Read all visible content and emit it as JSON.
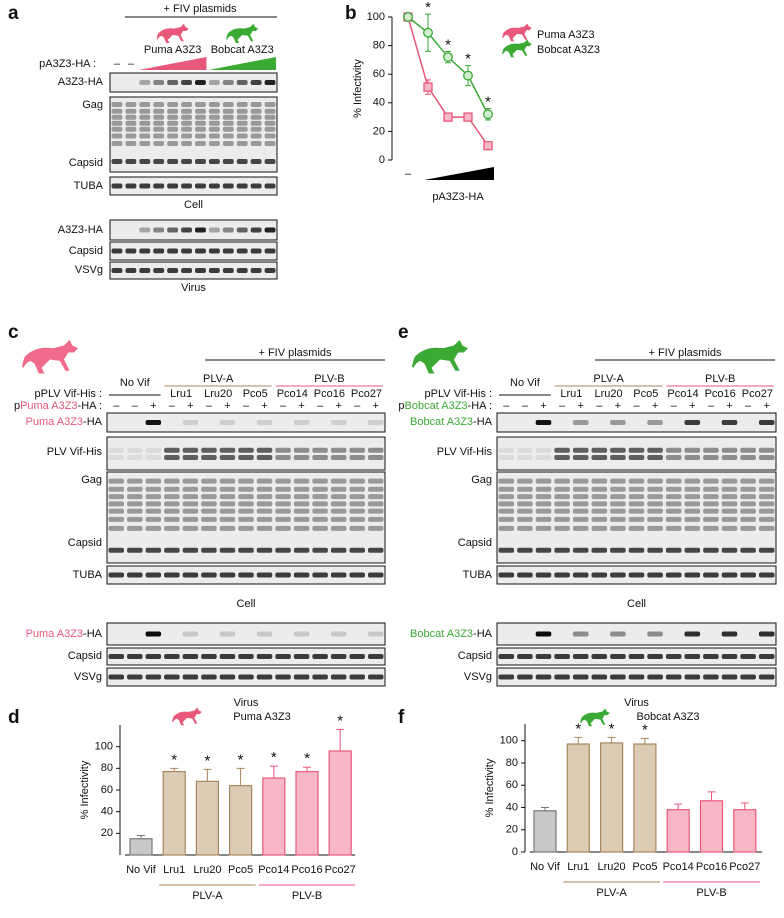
{
  "figure": {
    "a": {
      "label": "a",
      "header": "+ FIV plasmids",
      "species": [
        {
          "name": "Puma A3Z3",
          "color": "#e8587a"
        },
        {
          "name": "Bobcat A3Z3",
          "color": "#3aaa35"
        }
      ],
      "plasmid_label": "pA3Z3-HA :",
      "controls": [
        "–",
        "–"
      ],
      "cell_rows": [
        "A3Z3-HA",
        "Gag",
        "Capsid",
        "TUBA"
      ],
      "cell_caption": "Cell",
      "virus_rows": [
        "A3Z3-HA",
        "Capsid",
        "VSVg"
      ],
      "virus_caption": "Virus"
    },
    "c": {
      "label": "c",
      "header": "+ FIV plasmids",
      "icon_color": "#f06b8a",
      "no_vif": "No Vif",
      "groups": [
        {
          "name": "PLV-A",
          "color": "#a8865e",
          "members": [
            "Lru1",
            "Lru20",
            "Pco5"
          ]
        },
        {
          "name": "PLV-B",
          "color": "#e8587a",
          "members": [
            "Pco14",
            "Pco16",
            "Pco27"
          ]
        }
      ],
      "vif_label": "pPLV Vif-His :",
      "a3_label": {
        "prefix": "p",
        "name": "Puma A3Z3",
        "suffix": "-HA :",
        "color": "#e8587a"
      },
      "lane_signs": [
        "–",
        "–",
        "+",
        "–",
        "+",
        "–",
        "+",
        "–",
        "+",
        "–",
        "+",
        "–",
        "+",
        "–",
        "+"
      ],
      "cell_rows": [
        {
          "name": "Puma A3Z3",
          "suffix": "-HA",
          "color": "#e8587a"
        },
        "PLV Vif-His",
        "Gag",
        "Capsid",
        "TUBA"
      ],
      "cell_caption": "Cell",
      "virus_rows": [
        {
          "name": "Puma A3Z3",
          "suffix": "-HA",
          "color": "#e8587a"
        },
        "Capsid",
        "VSVg"
      ],
      "virus_caption": "Virus"
    },
    "e": {
      "label": "e",
      "header": "+ FIV plasmids",
      "icon_color": "#3aaa35",
      "no_vif": "No Vif",
      "groups": [
        {
          "name": "PLV-A",
          "color": "#a8865e",
          "members": [
            "Lru1",
            "Lru20",
            "Pco5"
          ]
        },
        {
          "name": "PLV-B",
          "color": "#e8587a",
          "members": [
            "Pco14",
            "Pco16",
            "Pco27"
          ]
        }
      ],
      "vif_label": "pPLV Vif-His :",
      "a3_label": {
        "prefix": "p",
        "name": "Bobcat A3Z3",
        "suffix": "-HA :",
        "color": "#3aaa35"
      },
      "lane_signs": [
        "–",
        "–",
        "+",
        "–",
        "+",
        "–",
        "+",
        "–",
        "+",
        "–",
        "+",
        "–",
        "+",
        "–",
        "+"
      ],
      "cell_rows": [
        {
          "name": "Bobcat A3Z3",
          "suffix": "-HA",
          "color": "#3aaa35"
        },
        "PLV Vif-His",
        "Gag",
        "Capsid",
        "TUBA"
      ],
      "cell_caption": "Cell",
      "virus_rows": [
        {
          "name": "Bobcat A3Z3",
          "suffix": "-HA",
          "color": "#3aaa35"
        },
        "Capsid",
        "VSVg"
      ],
      "virus_caption": "Virus"
    }
  },
  "chart_data": [
    {
      "type": "line",
      "panel_label": "b",
      "categories": [
        "–",
        null,
        null,
        null,
        null
      ],
      "x_label": "pA3Z3-HA",
      "y_label": "% Infectivity",
      "ylim": [
        0,
        100
      ],
      "yticks": [
        0,
        20,
        40,
        60,
        80,
        100
      ],
      "markers": [
        null,
        "*",
        "*",
        "*",
        "*"
      ],
      "series": [
        {
          "name": "Puma A3Z3",
          "color": "#e8587a",
          "fill": "#f7b7c6",
          "marker": "square",
          "values": [
            100,
            51,
            30,
            30,
            10
          ],
          "errors": [
            0,
            5,
            0,
            0,
            2
          ]
        },
        {
          "name": "Bobcat A3Z3",
          "color": "#3aaa35",
          "fill": "#d3edcf",
          "marker": "circle",
          "values": [
            100,
            89,
            72,
            59,
            32
          ],
          "errors": [
            0,
            13,
            4,
            7,
            4
          ]
        }
      ]
    },
    {
      "type": "bar",
      "panel_label": "d",
      "title": "Puma A3Z3",
      "title_color": "#e8587a",
      "categories": [
        "No Vif",
        "Lru1",
        "Lru20",
        "Pco5",
        "Pco14",
        "Pco16",
        "Pco27"
      ],
      "values": [
        15,
        77,
        68,
        64,
        71,
        77,
        96
      ],
      "errors": [
        3,
        3,
        11,
        16,
        11,
        4,
        20
      ],
      "colors": [
        "#c8c8c8",
        "#dccbb5",
        "#dccbb5",
        "#dccbb5",
        "#f7b7c6",
        "#f7b7c6",
        "#f7b7c6"
      ],
      "edge_colors": [
        "#777777",
        "#a8865e",
        "#a8865e",
        "#a8865e",
        "#e8587a",
        "#e8587a",
        "#e8587a"
      ],
      "markers": [
        null,
        "*",
        "*",
        "*",
        "*",
        "*",
        "*"
      ],
      "groups": [
        {
          "name": "PLV-A",
          "color": "#a8865e",
          "members": [
            "Lru1",
            "Lru20",
            "Pco5"
          ]
        },
        {
          "name": "PLV-B",
          "color": "#e8587a",
          "members": [
            "Pco14",
            "Pco16",
            "Pco27"
          ]
        }
      ],
      "y_label": "% Infectivity",
      "ylim": [
        0,
        120
      ],
      "yticks": [
        20,
        40,
        60,
        80,
        100
      ]
    },
    {
      "type": "bar",
      "panel_label": "f",
      "title": "Bobcat A3Z3",
      "title_color": "#3aaa35",
      "categories": [
        "No Vif",
        "Lru1",
        "Lru20",
        "Pco5",
        "Pco14",
        "Pco16",
        "Pco27"
      ],
      "values": [
        37,
        97,
        98,
        97,
        38,
        46,
        38
      ],
      "errors": [
        3,
        6,
        5,
        5,
        5,
        8,
        6
      ],
      "colors": [
        "#c8c8c8",
        "#dccbb5",
        "#dccbb5",
        "#dccbb5",
        "#f7b7c6",
        "#f7b7c6",
        "#f7b7c6"
      ],
      "edge_colors": [
        "#777777",
        "#a8865e",
        "#a8865e",
        "#a8865e",
        "#e8587a",
        "#e8587a",
        "#e8587a"
      ],
      "markers": [
        null,
        "*",
        "*",
        "*",
        null,
        null,
        null
      ],
      "groups": [
        {
          "name": "PLV-A",
          "color": "#a8865e",
          "members": [
            "Lru1",
            "Lru20",
            "Pco5"
          ]
        },
        {
          "name": "PLV-B",
          "color": "#e8587a",
          "members": [
            "Pco14",
            "Pco16",
            "Pco27"
          ]
        }
      ],
      "y_label": "% Infectivity",
      "ylim": [
        0,
        115
      ],
      "yticks": [
        0,
        20,
        40,
        60,
        80,
        100
      ]
    }
  ]
}
